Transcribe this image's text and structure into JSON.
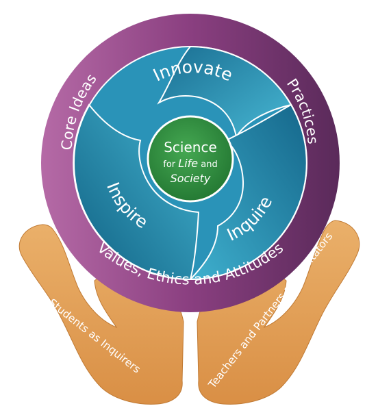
{
  "center": {
    "line1": "Science",
    "line2_prefix": "for",
    "line2_emph": "Life",
    "line2_suffix": "and",
    "line3": "Society"
  },
  "swirl": {
    "top": "Innovate",
    "left": "Inspire",
    "right": "Inquire"
  },
  "ring": {
    "left": "Core Ideas",
    "right": "Practices",
    "bottom": "Values, Ethics and Attitudes"
  },
  "hands": {
    "left": "Students as Inquirers",
    "right": "Teachers and Partners as Facilitators"
  },
  "colors": {
    "ring_left": "#b56aa6",
    "ring_right": "#5a2a5a",
    "teal_light": "#3aa8c8",
    "teal_dark": "#0f5f82",
    "center_green": "#2e8b3f",
    "hand": "#e4a15b",
    "hand_edge": "#c07a34"
  }
}
